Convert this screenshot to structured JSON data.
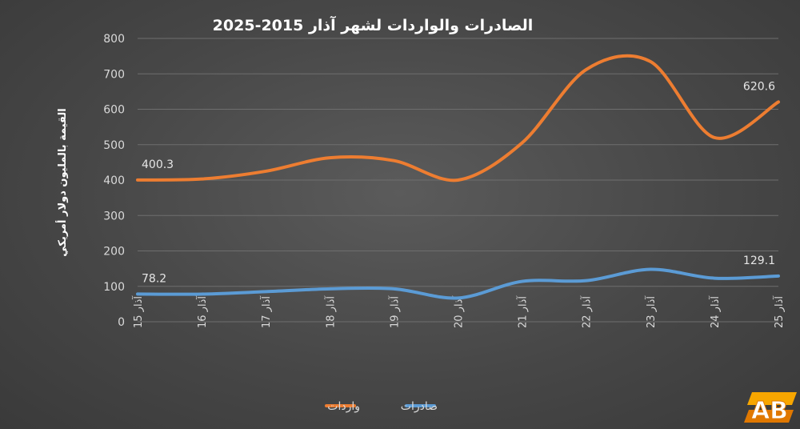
{
  "chart_data": {
    "type": "line",
    "title": "الصادرات والواردات لشهر آذار 2015-2025",
    "ylabel": "القيمة بالمليون دولار أمريكي",
    "xlabel": "",
    "ylim": [
      0,
      800
    ],
    "yticks": [
      0,
      100,
      200,
      300,
      400,
      500,
      600,
      700,
      800
    ],
    "categories": [
      "آذار 15",
      "آذار 16",
      "آذار 17",
      "آذار 18",
      "آذار 19",
      "آذار 20",
      "آذار 21",
      "آذار 22",
      "آذار 23",
      "آذار 24",
      "آذار 25"
    ],
    "series": [
      {
        "name": "واردات",
        "color": "#ed7d31",
        "values": [
          400.3,
          403,
          425,
          463,
          455,
          400,
          505,
          712,
          735,
          520,
          620.6
        ],
        "labels": {
          "0": "400.3",
          "10": "620.6"
        }
      },
      {
        "name": "صادرات",
        "color": "#5b9bd5",
        "values": [
          78.2,
          78,
          85,
          93,
          93,
          67,
          114,
          116,
          148,
          123,
          129.1
        ],
        "labels": {
          "0": "78.2",
          "10": "129.1"
        }
      }
    ],
    "grid": true,
    "legend": "bottom-center"
  },
  "logo": {
    "text": "AB",
    "colors": [
      "#f7a600",
      "#e07800"
    ]
  }
}
